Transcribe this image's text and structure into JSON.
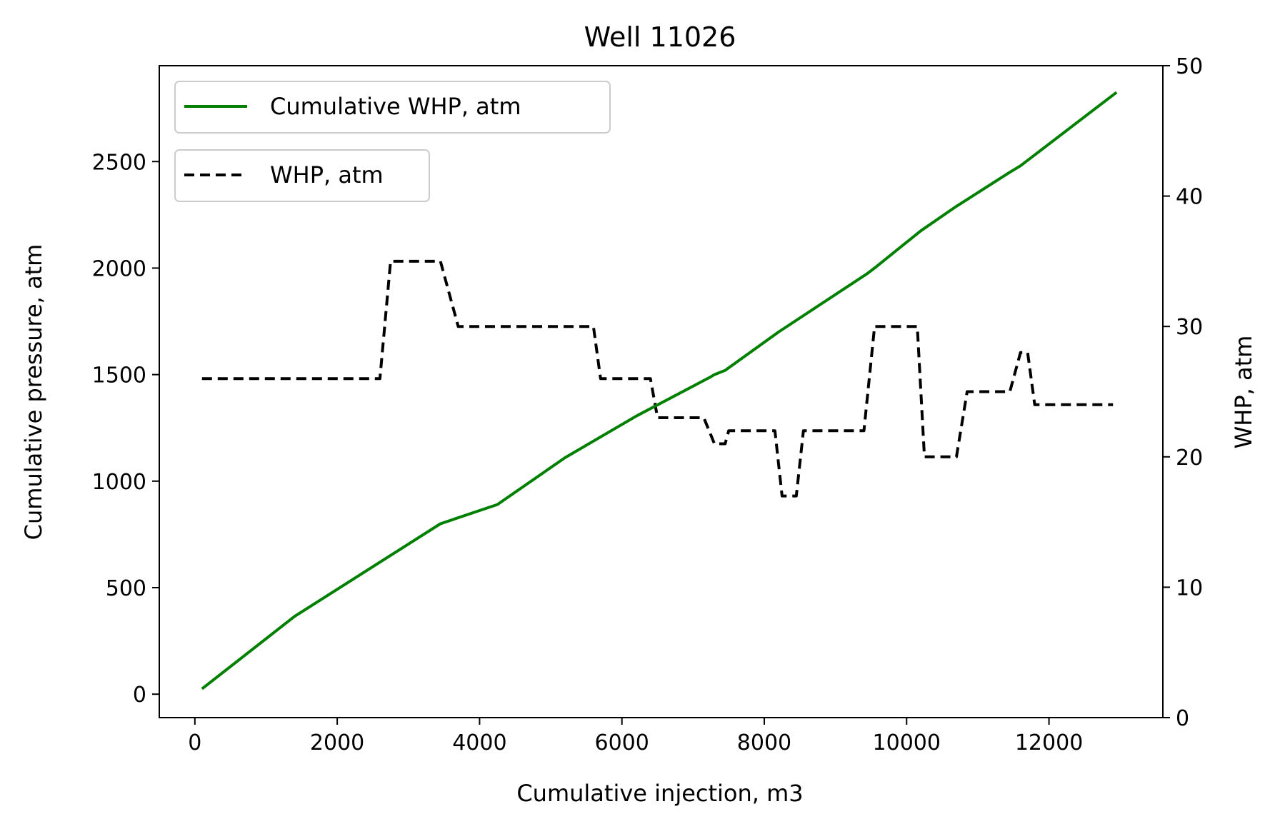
{
  "chart_data": {
    "type": "line",
    "title": "Well 11026",
    "xlabel": "Cumulative injection, m3",
    "ylabel": "Cumulative pressure, atm",
    "y2label": "WHP, atm",
    "xlim": [
      -500,
      13600
    ],
    "ylim": [
      -110,
      2950
    ],
    "y2lim": [
      0,
      50
    ],
    "xticks": [
      0,
      2000,
      4000,
      6000,
      8000,
      10000,
      12000
    ],
    "xtick_labels": [
      "0",
      "2000",
      "4000",
      "6000",
      "8000",
      "10000",
      "12000"
    ],
    "yticks": [
      0,
      500,
      1000,
      1500,
      2000,
      2500
    ],
    "ytick_labels": [
      "0",
      "500",
      "1000",
      "1500",
      "2000",
      "2500"
    ],
    "y2ticks": [
      0,
      10,
      20,
      30,
      40,
      50
    ],
    "y2tick_labels": [
      "0",
      "10",
      "20",
      "30",
      "40",
      "50"
    ],
    "grid": false,
    "series": [
      {
        "name": "Cumulative WHP, atm",
        "axis": "left",
        "color": "#008000",
        "style": "solid",
        "legend_position": "upper-left",
        "x": [
          100,
          1400,
          3450,
          4250,
          5200,
          6200,
          7250,
          7300,
          7450,
          8200,
          9450,
          9550,
          10200,
          10700,
          11450,
          11600,
          12950
        ],
        "y": [
          25,
          365,
          800,
          890,
          1110,
          1305,
          1490,
          1500,
          1520,
          1700,
          1975,
          2000,
          2175,
          2290,
          2450,
          2480,
          2825
        ]
      },
      {
        "name": "WHP, atm",
        "axis": "right",
        "color": "#000000",
        "style": "dashed",
        "legend_position": "upper-left (below)",
        "x": [
          100,
          2600,
          2750,
          3450,
          3700,
          5600,
          5700,
          6400,
          6500,
          7150,
          7300,
          7450,
          7500,
          8150,
          8250,
          8450,
          8550,
          9400,
          9550,
          10150,
          10250,
          10700,
          10850,
          11450,
          11600,
          11700,
          11800,
          12900
        ],
        "y": [
          26,
          26,
          35,
          35,
          30,
          30,
          26,
          26,
          23,
          23,
          21,
          21,
          22,
          22,
          17,
          17,
          22,
          22,
          30,
          30,
          20,
          20,
          25,
          25,
          28,
          28,
          24,
          24
        ]
      }
    ]
  }
}
